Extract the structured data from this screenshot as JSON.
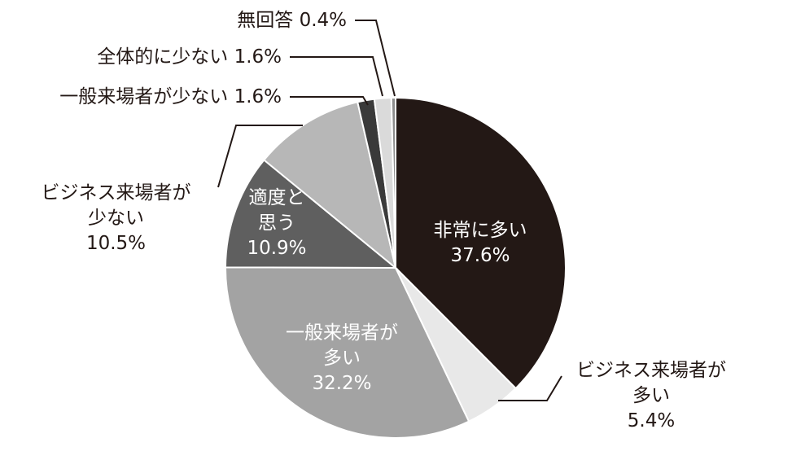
{
  "chart_data": {
    "type": "pie",
    "categories": [
      "非常に多い",
      "ビジネス来場者が\n多い",
      "一般来場者が\n多い",
      "適度と\n思う",
      "ビジネス来場者が\n少ない",
      "一般来場者が少ない",
      "全体的に少ない",
      "無回答"
    ],
    "values": [
      37.6,
      5.4,
      32.2,
      10.9,
      10.5,
      1.6,
      1.6,
      0.4
    ],
    "value_labels": [
      "37.6%",
      "5.4%",
      "32.2%",
      "10.9%",
      "10.5%",
      "1.6%",
      "1.6%",
      "0.4%"
    ],
    "colors": [
      "#231815",
      "#e8e8e8",
      "#a3a3a3",
      "#5f5f5f",
      "#b7b7b7",
      "#3a3a3a",
      "#dadada",
      "#8c8c8c"
    ]
  }
}
